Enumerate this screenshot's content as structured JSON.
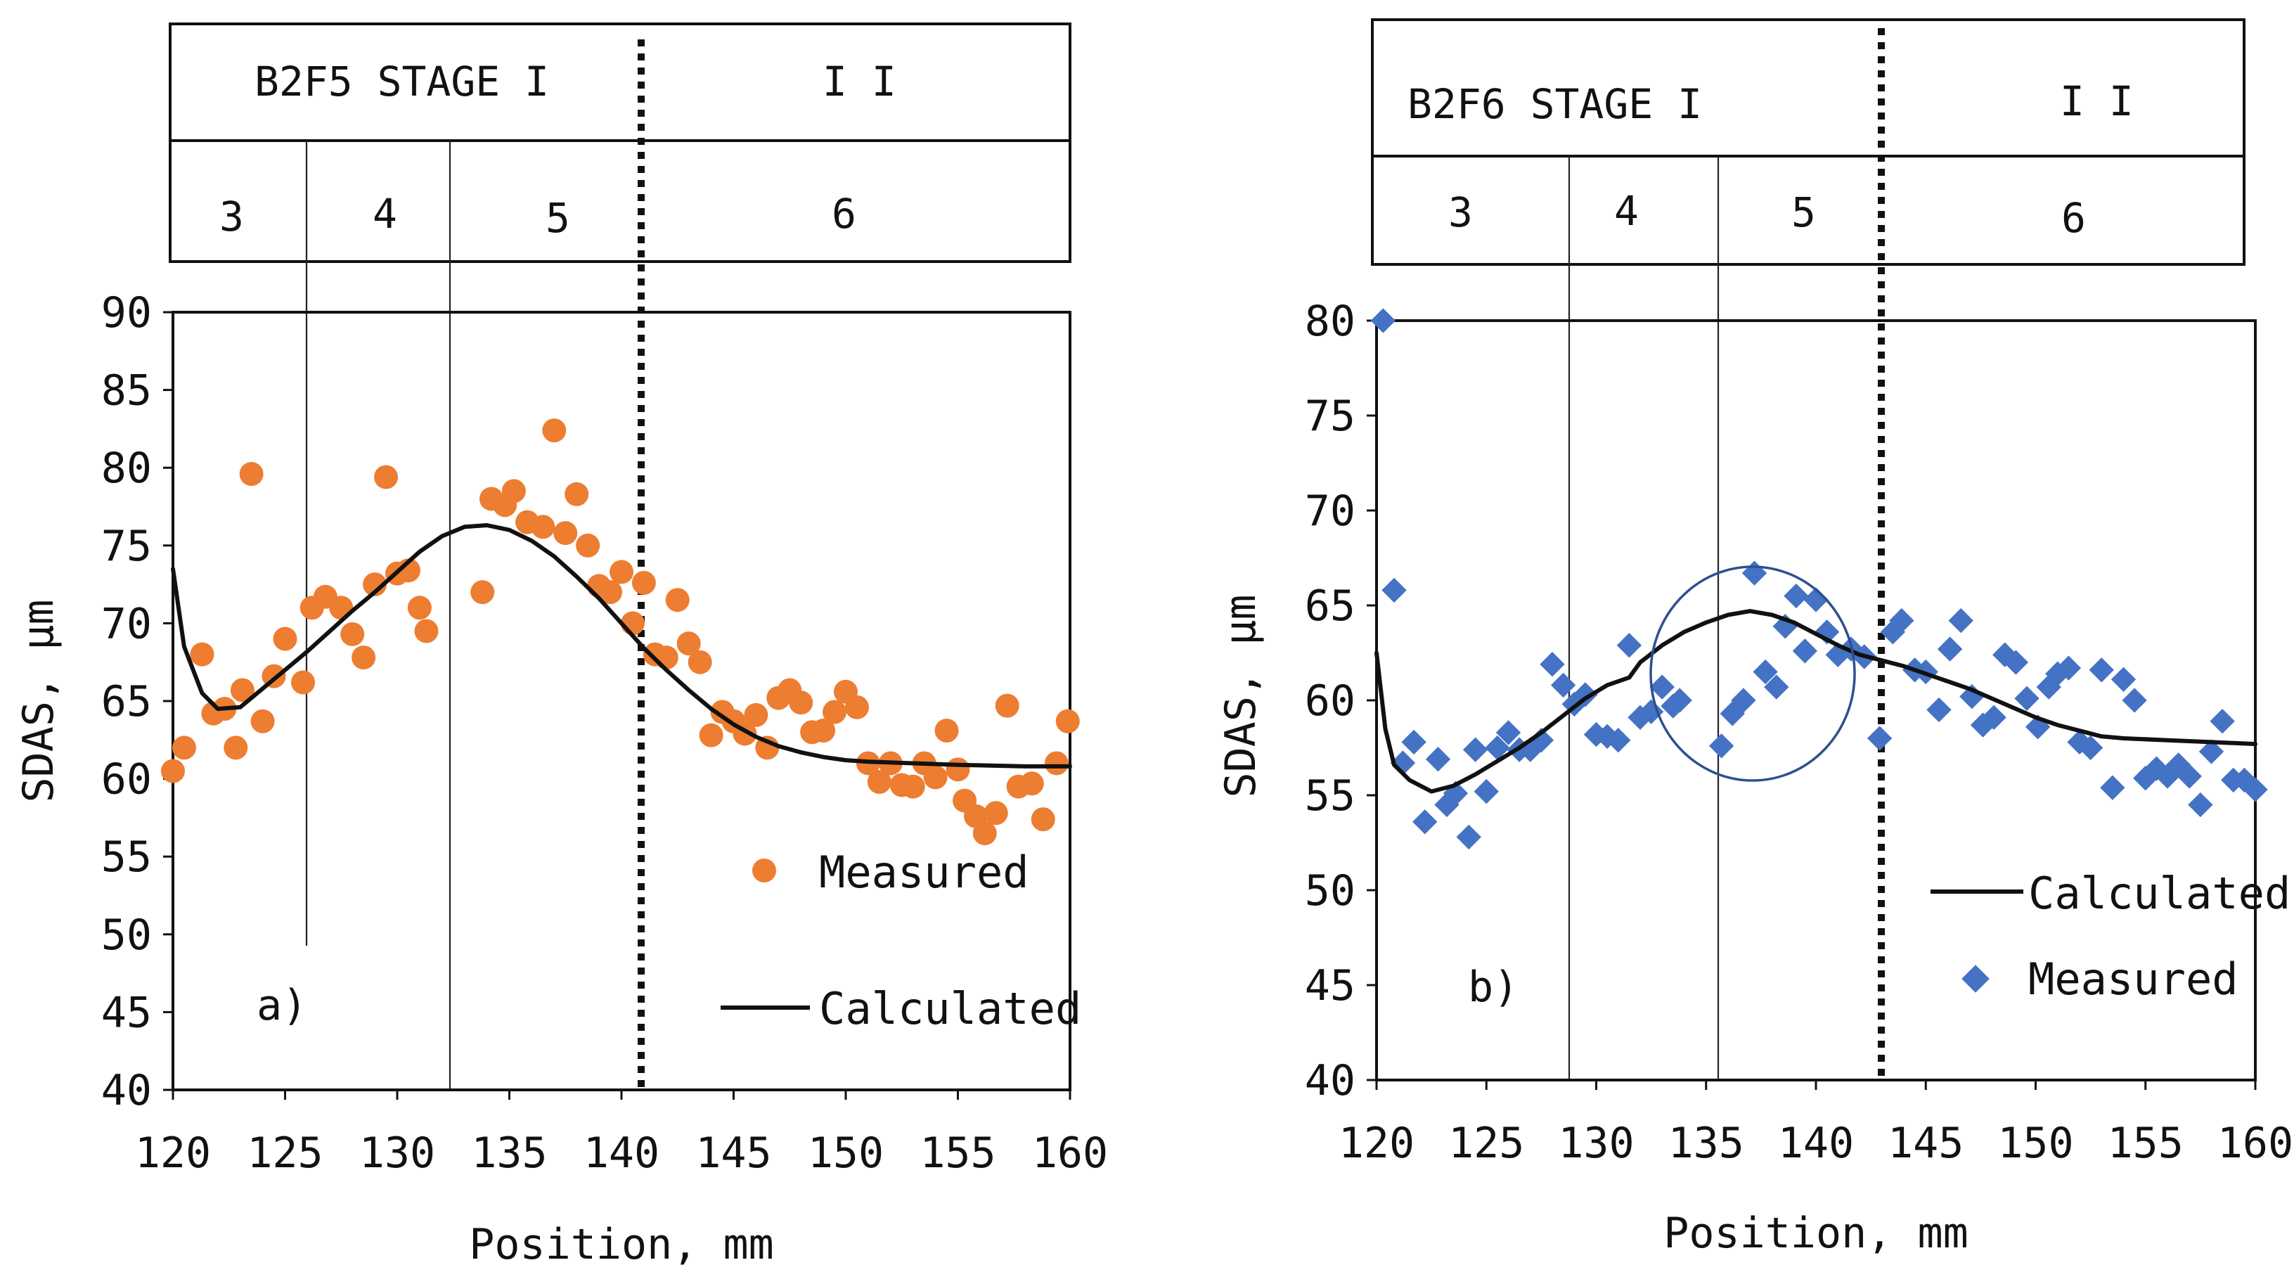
{
  "chart_data": [
    {
      "type": "scatter",
      "panel_label": "a)",
      "header": {
        "title": "B2F5  STAGE I",
        "stage2": "I I",
        "zones": [
          "3",
          "4",
          "5",
          "6"
        ]
      },
      "xlabel": "Position, mm",
      "ylabel": "SDAS, μm",
      "xlim": [
        120,
        160
      ],
      "ylim": [
        40,
        90
      ],
      "xticks": [
        "120",
        "125",
        "130",
        "135",
        "140",
        "145",
        "150",
        "155",
        "160"
      ],
      "yticks": [
        "40",
        "45",
        "50",
        "55",
        "60",
        "65",
        "70",
        "75",
        "80",
        "85",
        "90"
      ],
      "zone_boundaries": [
        125.8,
        132.5
      ],
      "stage_boundary": 141,
      "legend": {
        "measured": "Measured",
        "calculated": "Calculated"
      },
      "colors": {
        "measured": "#ED7D31",
        "calculated": "#111111"
      },
      "series": [
        {
          "name": "Measured",
          "points": [
            [
              120,
              60.5
            ],
            [
              120.5,
              62
            ],
            [
              121.3,
              68
            ],
            [
              121.8,
              64.2
            ],
            [
              122.3,
              64.5
            ],
            [
              122.8,
              62
            ],
            [
              123.1,
              65.7
            ],
            [
              123.5,
              79.6
            ],
            [
              124,
              63.7
            ],
            [
              124.5,
              66.6
            ],
            [
              125,
              69
            ],
            [
              125.8,
              66.2
            ],
            [
              126.2,
              71
            ],
            [
              126.8,
              71.7
            ],
            [
              127.5,
              71
            ],
            [
              128,
              69.3
            ],
            [
              128.5,
              67.8
            ],
            [
              129,
              72.5
            ],
            [
              129.5,
              79.4
            ],
            [
              130,
              73.2
            ],
            [
              130.5,
              73.4
            ],
            [
              131,
              71
            ],
            [
              131.3,
              69.5
            ],
            [
              133.8,
              72
            ],
            [
              134.2,
              78
            ],
            [
              134.8,
              77.6
            ],
            [
              135.2,
              78.5
            ],
            [
              135.8,
              76.5
            ],
            [
              136.5,
              76.2
            ],
            [
              137,
              82.4
            ],
            [
              137.5,
              75.8
            ],
            [
              138,
              78.3
            ],
            [
              138.5,
              75
            ],
            [
              139,
              72.4
            ],
            [
              139.5,
              72
            ],
            [
              140,
              73.3
            ],
            [
              140.5,
              70
            ],
            [
              141,
              72.6
            ],
            [
              141.5,
              68
            ],
            [
              142,
              67.8
            ],
            [
              142.5,
              71.5
            ],
            [
              143,
              68.7
            ],
            [
              143.5,
              67.5
            ],
            [
              144,
              62.8
            ],
            [
              144.5,
              64.3
            ],
            [
              145,
              63.7
            ],
            [
              145.5,
              62.9
            ],
            [
              146,
              64.1
            ],
            [
              146.5,
              62
            ],
            [
              147,
              65.2
            ],
            [
              147.5,
              65.7
            ],
            [
              148,
              64.9
            ],
            [
              148.5,
              63
            ],
            [
              149,
              63.1
            ],
            [
              149.5,
              64.3
            ],
            [
              150,
              65.6
            ],
            [
              150.5,
              64.6
            ],
            [
              151,
              61
            ],
            [
              151.5,
              59.8
            ],
            [
              152,
              61
            ],
            [
              152.5,
              59.6
            ],
            [
              153,
              59.5
            ],
            [
              153.5,
              61
            ],
            [
              154,
              60.1
            ],
            [
              154.5,
              63.1
            ],
            [
              155,
              60.6
            ],
            [
              155.3,
              58.6
            ],
            [
              155.8,
              57.6
            ],
            [
              156.2,
              56.5
            ],
            [
              156.7,
              57.8
            ],
            [
              157.2,
              64.7
            ],
            [
              157.7,
              59.5
            ],
            [
              158.3,
              59.7
            ],
            [
              158.8,
              57.4
            ],
            [
              159.4,
              61
            ],
            [
              159.9,
              63.7
            ]
          ]
        },
        {
          "name": "Calculated",
          "points": [
            [
              120,
              73.5
            ],
            [
              120.5,
              68.5
            ],
            [
              121.3,
              65.5
            ],
            [
              122,
              64.5
            ],
            [
              123,
              64.6
            ],
            [
              124,
              65.8
            ],
            [
              125,
              67
            ],
            [
              126,
              68.2
            ],
            [
              127,
              69.5
            ],
            [
              128,
              70.8
            ],
            [
              129,
              72
            ],
            [
              130,
              73.3
            ],
            [
              131,
              74.6
            ],
            [
              132,
              75.6
            ],
            [
              133,
              76.2
            ],
            [
              134,
              76.3
            ],
            [
              135,
              76
            ],
            [
              136,
              75.3
            ],
            [
              137,
              74.3
            ],
            [
              138,
              73
            ],
            [
              139,
              71.6
            ],
            [
              140,
              70
            ],
            [
              141,
              68.4
            ],
            [
              142,
              67
            ],
            [
              143,
              65.7
            ],
            [
              144,
              64.5
            ],
            [
              145,
              63.5
            ],
            [
              146,
              62.7
            ],
            [
              147,
              62.1
            ],
            [
              148,
              61.7
            ],
            [
              149,
              61.4
            ],
            [
              150,
              61.2
            ],
            [
              151,
              61.1
            ],
            [
              153,
              61
            ],
            [
              155,
              60.9
            ],
            [
              158,
              60.8
            ],
            [
              160,
              60.8
            ]
          ]
        }
      ]
    },
    {
      "type": "scatter",
      "panel_label": "b)",
      "header": {
        "title": "B2F6  STAGE I",
        "stage2": "I I",
        "zones": [
          "3",
          "4",
          "5",
          "6"
        ]
      },
      "xlabel": "Position, mm",
      "ylabel": "SDAS, μm",
      "xlim": [
        120,
        160
      ],
      "ylim": [
        40,
        80
      ],
      "xticks": [
        "120",
        "125",
        "130",
        "135",
        "140",
        "145",
        "150",
        "155",
        "160"
      ],
      "yticks": [
        "40",
        "45",
        "50",
        "55",
        "60",
        "65",
        "70",
        "75",
        "80"
      ],
      "zone_boundaries": [
        128.9,
        135.7
      ],
      "stage_boundary": 143,
      "annotation": "circled cluster near 134-142 mm",
      "legend": {
        "measured": "Measured",
        "calculated": "Calculated"
      },
      "colors": {
        "measured": "#4472C4",
        "calculated": "#111111"
      },
      "series": [
        {
          "name": "Measured",
          "points": [
            [
              120.3,
              80
            ],
            [
              120.8,
              65.8
            ],
            [
              121.2,
              56.7
            ],
            [
              121.7,
              57.8
            ],
            [
              122.2,
              53.6
            ],
            [
              122.8,
              56.9
            ],
            [
              123.2,
              54.5
            ],
            [
              123.6,
              55.1
            ],
            [
              124.2,
              52.8
            ],
            [
              124.5,
              57.4
            ],
            [
              125,
              55.2
            ],
            [
              125.5,
              57.5
            ],
            [
              126,
              58.3
            ],
            [
              126.5,
              57.4
            ],
            [
              127,
              57.4
            ],
            [
              127.5,
              57.9
            ],
            [
              128,
              61.9
            ],
            [
              128.5,
              60.8
            ],
            [
              129,
              59.8
            ],
            [
              129.5,
              60.3
            ],
            [
              130,
              58.2
            ],
            [
              130.5,
              58.1
            ],
            [
              131,
              57.9
            ],
            [
              131.5,
              62.9
            ],
            [
              132,
              59.1
            ],
            [
              132.5,
              59.4
            ],
            [
              133,
              60.7
            ],
            [
              133.5,
              59.7
            ],
            [
              133.8,
              60
            ],
            [
              135.7,
              57.6
            ],
            [
              136.2,
              59.3
            ],
            [
              136.7,
              60
            ],
            [
              137.2,
              66.7
            ],
            [
              137.7,
              61.5
            ],
            [
              138.2,
              60.7
            ],
            [
              138.6,
              63.9
            ],
            [
              139.1,
              65.5
            ],
            [
              139.5,
              62.6
            ],
            [
              140,
              65.3
            ],
            [
              140.5,
              63.6
            ],
            [
              141,
              62.4
            ],
            [
              141.6,
              62.7
            ],
            [
              142.2,
              62.3
            ],
            [
              142.9,
              58
            ],
            [
              143.5,
              63.6
            ],
            [
              143.9,
              64.2
            ],
            [
              144.5,
              61.6
            ],
            [
              145,
              61.5
            ],
            [
              145.6,
              59.5
            ],
            [
              146.1,
              62.7
            ],
            [
              146.6,
              64.2
            ],
            [
              147.1,
              60.2
            ],
            [
              147.6,
              58.7
            ],
            [
              148.1,
              59.1
            ],
            [
              148.6,
              62.4
            ],
            [
              149.1,
              62
            ],
            [
              149.6,
              60.1
            ],
            [
              150.1,
              58.6
            ],
            [
              150.6,
              60.7
            ],
            [
              151,
              61.4
            ],
            [
              151.5,
              61.7
            ],
            [
              152,
              57.8
            ],
            [
              152.5,
              57.5
            ],
            [
              153,
              61.6
            ],
            [
              153.5,
              55.4
            ],
            [
              154,
              61.1
            ],
            [
              154.5,
              60
            ],
            [
              155,
              55.9
            ],
            [
              155.5,
              56.4
            ],
            [
              156,
              56
            ],
            [
              156.5,
              56.6
            ],
            [
              157,
              56
            ],
            [
              157.5,
              54.5
            ],
            [
              158,
              57.3
            ],
            [
              158.5,
              58.9
            ],
            [
              159,
              55.8
            ],
            [
              159.5,
              55.8
            ],
            [
              160,
              55.3
            ]
          ]
        },
        {
          "name": "Calculated",
          "points": [
            [
              120,
              62.5
            ],
            [
              120.4,
              58.5
            ],
            [
              120.8,
              56.6
            ],
            [
              121.5,
              55.8
            ],
            [
              122.5,
              55.2
            ],
            [
              123.5,
              55.5
            ],
            [
              124.5,
              56.1
            ],
            [
              125.5,
              56.8
            ],
            [
              126.5,
              57.5
            ],
            [
              127.5,
              58.3
            ],
            [
              128.5,
              59.2
            ],
            [
              129.5,
              60.1
            ],
            [
              130.5,
              60.8
            ],
            [
              131.5,
              61.2
            ],
            [
              132,
              62
            ],
            [
              133,
              62.9
            ],
            [
              134,
              63.6
            ],
            [
              135,
              64.1
            ],
            [
              136,
              64.5
            ],
            [
              137,
              64.7
            ],
            [
              138,
              64.5
            ],
            [
              139,
              64.1
            ],
            [
              140,
              63.5
            ],
            [
              141,
              62.9
            ],
            [
              142,
              62.4
            ],
            [
              143,
              62.1
            ],
            [
              144,
              61.8
            ],
            [
              145,
              61.4
            ],
            [
              146,
              61
            ],
            [
              147,
              60.6
            ],
            [
              148,
              60.1
            ],
            [
              149,
              59.6
            ],
            [
              150,
              59.1
            ],
            [
              151,
              58.7
            ],
            [
              152,
              58.4
            ],
            [
              153,
              58.1
            ],
            [
              154,
              58
            ],
            [
              156,
              57.9
            ],
            [
              158,
              57.8
            ],
            [
              160,
              57.7
            ]
          ]
        }
      ]
    }
  ]
}
